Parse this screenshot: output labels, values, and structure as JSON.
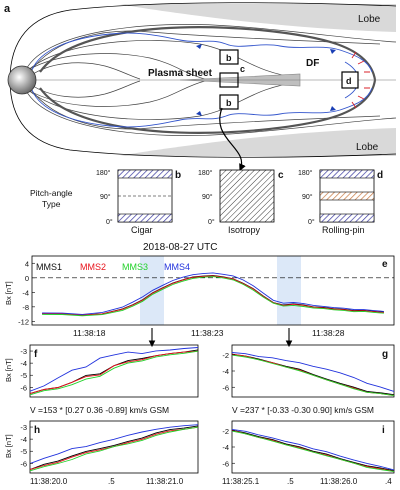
{
  "panel_a": {
    "letter": "a",
    "lobe_top": "Lobe",
    "lobe_bottom": "Lobe",
    "plasma_sheet": "Plasma sheet",
    "df": "DF",
    "box_b_top": "b",
    "box_c": "c",
    "box_b_bottom": "b",
    "box_d": "d"
  },
  "pitch_angle": {
    "type_label_1": "Pitch-angle",
    "type_label_2": "Type",
    "ticks": [
      "180°",
      "90°",
      "0°"
    ],
    "panels": [
      {
        "letter": "b",
        "name": "Cigar"
      },
      {
        "letter": "c",
        "name": "Isotropy"
      },
      {
        "letter": "d",
        "name": "Rolling-pin"
      }
    ]
  },
  "panel_e": {
    "date_title": "2018-08-27 UTC",
    "letter": "e",
    "ylabel": "Bx [nT]",
    "yticks": [
      "4",
      "0",
      "-4",
      "-8",
      "-12"
    ],
    "xticks": [
      "11:38:18",
      "11:38:23",
      "11:38:28"
    ]
  },
  "spacecraft": [
    {
      "name": "MMS1",
      "color": "#000000"
    },
    {
      "name": "MMS2",
      "color": "#e8141c"
    },
    {
      "name": "MMS3",
      "color": "#22d22a"
    },
    {
      "name": "MMS4",
      "color": "#2233dd"
    }
  ],
  "small_panels": {
    "f": {
      "letter": "f",
      "ylabel": "Bx [nT]",
      "yticks": [
        "-3",
        "-4",
        "-5",
        "-6"
      ]
    },
    "g": {
      "letter": "g",
      "yticks": [
        "-2",
        "-4",
        "-6"
      ]
    },
    "h": {
      "letter": "h",
      "ylabel": "Bx [nT]",
      "yticks": [
        "-3",
        "-4",
        "-5",
        "-6"
      ],
      "xticks": [
        "11:38:20.0",
        ".5",
        "11:38:21.0"
      ]
    },
    "i": {
      "letter": "i",
      "yticks": [
        "-2",
        "-4",
        "-6"
      ],
      "xticks": [
        "11:38:25.1",
        ".5",
        "11:38:26.0",
        ".4"
      ]
    }
  },
  "velocity_left": "V =153 * [0.27  0.36 -0.89] km/s  GSM",
  "velocity_right": "V =237 * [-0.33 -0.30  0.90] km/s  GSM",
  "chart_data": [
    {
      "type": "line",
      "panel": "e",
      "xlabel": "",
      "ylabel": "Bx [nT]",
      "ylim": [
        -13,
        6
      ],
      "x_ticks": [
        "11:38:18",
        "11:38:23",
        "11:38:28"
      ],
      "x": [
        14.5,
        15.5,
        16.5,
        17.5,
        18.5,
        19.0,
        19.5,
        20.0,
        20.5,
        21.0,
        21.5,
        22.0,
        22.5,
        23.0,
        23.5,
        24.0,
        24.5,
        25.0,
        25.5,
        26.0,
        26.5,
        27.0,
        27.5,
        28.0,
        28.5,
        29.0,
        29.5,
        30.0,
        30.5,
        31.0,
        31.5
      ],
      "series": [
        {
          "name": "MMS1",
          "values": [
            -9.8,
            -10.0,
            -10.2,
            -10.0,
            -8.5,
            -7.5,
            -6.0,
            -4.2,
            -2.7,
            -1.5,
            -0.5,
            0.2,
            0.5,
            0.6,
            0.3,
            -0.3,
            -1.5,
            -3.0,
            -5.0,
            -6.8,
            -7.5,
            -7.2,
            -7.5,
            -8.0,
            -8.2,
            -8.5,
            -8.7,
            -9.0,
            -9.0,
            -9.2,
            -9.5
          ]
        },
        {
          "name": "MMS2",
          "values": [
            -9.8,
            -10.0,
            -10.2,
            -10.0,
            -8.6,
            -7.6,
            -6.1,
            -4.3,
            -2.8,
            -1.6,
            -0.6,
            0.1,
            0.4,
            0.5,
            0.2,
            -0.4,
            -1.6,
            -3.1,
            -5.1,
            -6.9,
            -7.6,
            -7.3,
            -7.6,
            -8.1,
            -8.3,
            -8.6,
            -8.8,
            -9.1,
            -9.1,
            -9.3,
            -9.6
          ]
        },
        {
          "name": "MMS3",
          "values": [
            -10.0,
            -10.2,
            -10.4,
            -10.2,
            -8.9,
            -7.9,
            -6.4,
            -4.6,
            -3.1,
            -1.9,
            -0.9,
            -0.2,
            0.2,
            0.3,
            0.0,
            -0.6,
            -1.8,
            -3.4,
            -5.3,
            -7.0,
            -7.8,
            -7.6,
            -7.9,
            -8.3,
            -8.5,
            -8.8,
            -9.0,
            -9.3,
            -9.3,
            -9.5,
            -9.8
          ]
        },
        {
          "name": "MMS4",
          "values": [
            -9.6,
            -9.8,
            -10.0,
            -9.6,
            -8.0,
            -6.8,
            -5.2,
            -3.5,
            -2.0,
            -0.8,
            0.2,
            0.8,
            1.2,
            1.3,
            1.0,
            0.5,
            -0.6,
            -2.2,
            -4.2,
            -6.2,
            -7.0,
            -6.8,
            -7.1,
            -7.6,
            -7.9,
            -8.2,
            -8.4,
            -8.7,
            -8.8,
            -9.0,
            -9.3
          ]
        }
      ]
    },
    {
      "type": "line",
      "panel": "f",
      "ylabel": "Bx [nT]",
      "ylim": [
        -6.8,
        -2.5
      ],
      "x": [
        0,
        1,
        2,
        3,
        4,
        5,
        6,
        7,
        8,
        9,
        10,
        11,
        12
      ],
      "series": [
        {
          "name": "MMS1",
          "values": [
            -6.5,
            -6.2,
            -6.0,
            -5.6,
            -5.0,
            -4.9,
            -4.2,
            -3.8,
            -3.6,
            -3.4,
            -3.2,
            -3.1,
            -2.9
          ]
        },
        {
          "name": "MMS2",
          "values": [
            -6.5,
            -6.2,
            -6.0,
            -5.6,
            -5.1,
            -5.0,
            -4.2,
            -3.9,
            -3.7,
            -3.4,
            -3.2,
            -3.1,
            -3.0
          ]
        },
        {
          "name": "MMS3",
          "values": [
            -6.6,
            -6.3,
            -6.1,
            -5.8,
            -5.3,
            -5.1,
            -4.4,
            -4.0,
            -3.8,
            -3.5,
            -3.3,
            -3.2,
            -3.0
          ]
        },
        {
          "name": "MMS4",
          "values": [
            -6.3,
            -5.9,
            -5.2,
            -4.6,
            -4.3,
            -3.6,
            -3.3,
            -3.1,
            -3.2,
            -3.0,
            -2.9,
            -2.8,
            -2.7
          ]
        }
      ]
    },
    {
      "type": "line",
      "panel": "g",
      "ylim": [
        -7.2,
        -0.8
      ],
      "x": [
        0,
        1,
        2,
        3,
        4,
        5,
        6,
        7,
        8,
        9,
        10,
        11,
        12
      ],
      "series": [
        {
          "name": "MMS1",
          "values": [
            -1.9,
            -2.2,
            -2.5,
            -3.0,
            -3.4,
            -3.8,
            -4.4,
            -5.0,
            -5.5,
            -6.0,
            -6.5,
            -6.7,
            -6.9
          ]
        },
        {
          "name": "MMS2",
          "values": [
            -1.9,
            -2.2,
            -2.6,
            -3.0,
            -3.5,
            -3.9,
            -4.5,
            -5.1,
            -5.6,
            -6.1,
            -6.6,
            -6.8,
            -7.0
          ]
        },
        {
          "name": "MMS3",
          "values": [
            -2.0,
            -2.3,
            -2.6,
            -3.1,
            -3.5,
            -4.0,
            -4.5,
            -5.1,
            -5.6,
            -6.2,
            -6.6,
            -6.8,
            -7.0
          ]
        },
        {
          "name": "MMS4",
          "values": [
            -1.7,
            -1.9,
            -2.2,
            -2.4,
            -2.7,
            -3.0,
            -3.4,
            -3.8,
            -4.2,
            -4.8,
            -5.5,
            -6.0,
            -6.5
          ]
        }
      ]
    },
    {
      "type": "line",
      "panel": "h",
      "ylabel": "Bx [nT]",
      "ylim": [
        -6.8,
        -2.5
      ],
      "x_ticks": [
        "11:38:20.0",
        ".5",
        "11:38:21.0"
      ],
      "x": [
        0,
        1,
        2,
        3,
        4,
        5,
        6,
        7,
        8,
        9,
        10,
        11,
        12
      ],
      "series": [
        {
          "name": "MMS1",
          "values": [
            -6.5,
            -6.1,
            -5.8,
            -5.4,
            -5.0,
            -4.8,
            -4.5,
            -4.2,
            -3.9,
            -3.5,
            -3.2,
            -3.1,
            -2.9
          ]
        },
        {
          "name": "MMS2",
          "values": [
            -6.5,
            -6.2,
            -5.9,
            -5.5,
            -5.1,
            -4.9,
            -4.6,
            -4.3,
            -4.0,
            -3.6,
            -3.3,
            -3.2,
            -3.0
          ]
        },
        {
          "name": "MMS3",
          "values": [
            -6.6,
            -6.3,
            -6.0,
            -5.7,
            -5.2,
            -5.0,
            -4.6,
            -4.4,
            -4.1,
            -3.7,
            -3.4,
            -3.2,
            -3.0
          ]
        },
        {
          "name": "MMS4",
          "values": [
            -6.0,
            -5.6,
            -5.2,
            -4.8,
            -4.6,
            -4.3,
            -4.0,
            -3.7,
            -3.4,
            -3.2,
            -3.0,
            -2.9,
            -2.8
          ]
        }
      ]
    },
    {
      "type": "line",
      "panel": "i",
      "ylim": [
        -7.2,
        -0.8
      ],
      "x_ticks": [
        "11:38:25.1",
        ".5",
        "11:38:26.0",
        ".4"
      ],
      "x": [
        0,
        1,
        2,
        3,
        4,
        5,
        6,
        7,
        8,
        9,
        10,
        11,
        12
      ],
      "series": [
        {
          "name": "MMS1",
          "values": [
            -1.9,
            -2.3,
            -2.7,
            -3.1,
            -3.6,
            -4.0,
            -4.5,
            -4.9,
            -5.4,
            -5.9,
            -6.3,
            -6.6,
            -6.9
          ]
        },
        {
          "name": "MMS2",
          "values": [
            -1.9,
            -2.4,
            -2.8,
            -3.2,
            -3.7,
            -4.1,
            -4.6,
            -5.0,
            -5.5,
            -6.0,
            -6.4,
            -6.7,
            -7.0
          ]
        },
        {
          "name": "MMS3",
          "values": [
            -2.0,
            -2.4,
            -2.8,
            -3.3,
            -3.7,
            -4.2,
            -4.6,
            -5.1,
            -5.5,
            -6.0,
            -6.5,
            -6.8,
            -7.0
          ]
        },
        {
          "name": "MMS4",
          "values": [
            -1.8,
            -2.1,
            -2.5,
            -2.9,
            -3.3,
            -3.7,
            -4.2,
            -4.6,
            -5.1,
            -5.6,
            -6.0,
            -6.4,
            -6.8
          ]
        }
      ]
    }
  ]
}
